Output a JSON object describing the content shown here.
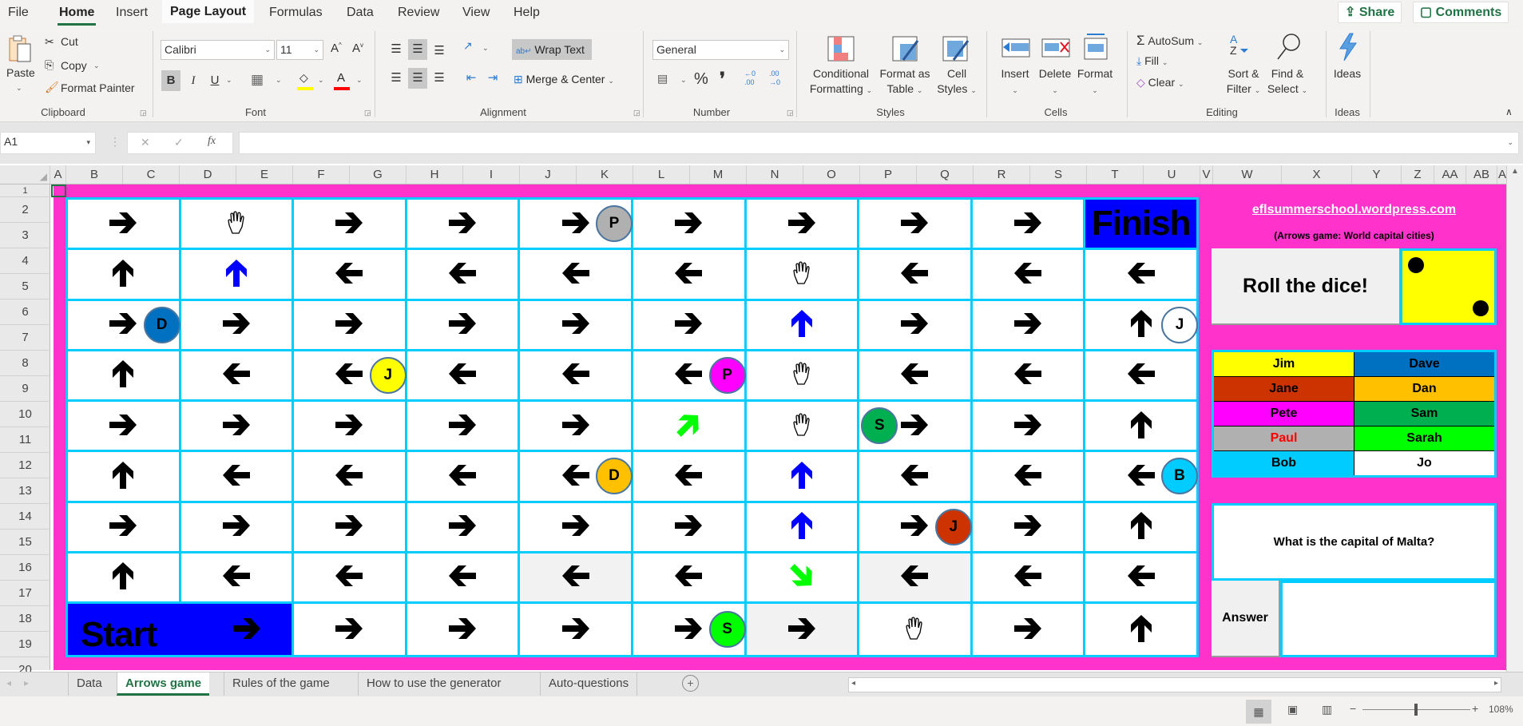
{
  "menu": {
    "tabs": [
      "File",
      "Home",
      "Insert",
      "Page Layout",
      "Formulas",
      "Data",
      "Review",
      "View",
      "Help"
    ],
    "active": "Home",
    "share": "Share",
    "comments": "Comments"
  },
  "ribbon": {
    "clipboard": {
      "label": "Clipboard",
      "paste": "Paste",
      "cut": "Cut",
      "copy": "Copy",
      "format_painter": "Format Painter"
    },
    "font": {
      "label": "Font",
      "name": "Calibri",
      "size": "11",
      "bold": "B",
      "italic": "I",
      "underline": "U",
      "fill_color": "#ffff00",
      "font_color": "#ff0000"
    },
    "alignment": {
      "label": "Alignment",
      "wrap_text": "Wrap Text",
      "merge_center": "Merge & Center"
    },
    "number": {
      "label": "Number",
      "format": "General",
      "percent": "%",
      "comma": "❜"
    },
    "styles": {
      "label": "Styles",
      "conditional": [
        "Conditional",
        "Formatting"
      ],
      "format_table": [
        "Format as",
        "Table"
      ],
      "cell_styles": [
        "Cell",
        "Styles"
      ]
    },
    "cells": {
      "label": "Cells",
      "insert": "Insert",
      "delete": "Delete",
      "format": "Format"
    },
    "editing": {
      "label": "Editing",
      "autosum": "AutoSum",
      "fill": "Fill",
      "clear": "Clear",
      "sort_filter": [
        "Sort &",
        "Filter"
      ],
      "find_select": [
        "Find &",
        "Select"
      ]
    },
    "ideas": {
      "label": "Ideas",
      "button": "Ideas"
    }
  },
  "formula_bar": {
    "name_box": "A1",
    "fx": "fx",
    "cancel": "✕",
    "enter": "✓",
    "value": ""
  },
  "columns": [
    "A",
    "B",
    "C",
    "D",
    "E",
    "F",
    "G",
    "H",
    "I",
    "J",
    "K",
    "L",
    "M",
    "N",
    "O",
    "P",
    "Q",
    "R",
    "S",
    "T",
    "U",
    "V",
    "W",
    "X",
    "Y",
    "Z",
    "AA",
    "AB",
    "A"
  ],
  "rows": [
    "1",
    "2",
    "3",
    "4",
    "5",
    "6",
    "7",
    "8",
    "9",
    "10",
    "11",
    "12",
    "13",
    "14",
    "15",
    "16",
    "17",
    "18",
    "19",
    "20"
  ],
  "colors": {
    "background": "#ff33cc",
    "grid": "#00ccff",
    "start_finish": "#0000ff"
  },
  "board": {
    "start_label": "Start",
    "finish_label": "Finish",
    "rows": [
      [
        {
          "icon": "right"
        },
        {
          "icon": "hand"
        },
        {
          "icon": "right"
        },
        {
          "icon": "right"
        },
        {
          "icon": "right",
          "token": {
            "letter": "P",
            "color": "#b0b0b0",
            "side": "right"
          }
        },
        {
          "icon": "right"
        },
        {
          "icon": "right"
        },
        {
          "icon": "right"
        },
        {
          "icon": "right"
        },
        {
          "type": "finish"
        }
      ],
      [
        {
          "icon": "up"
        },
        {
          "icon": "up",
          "color": "#0000ff"
        },
        {
          "icon": "left"
        },
        {
          "icon": "left"
        },
        {
          "icon": "left"
        },
        {
          "icon": "left"
        },
        {
          "icon": "hand"
        },
        {
          "icon": "left"
        },
        {
          "icon": "left"
        },
        {
          "icon": "left"
        }
      ],
      [
        {
          "icon": "right",
          "token": {
            "letter": "D",
            "color": "#0070c0",
            "side": "right"
          }
        },
        {
          "icon": "right"
        },
        {
          "icon": "right"
        },
        {
          "icon": "right"
        },
        {
          "icon": "right"
        },
        {
          "icon": "right"
        },
        {
          "icon": "up",
          "color": "#0000ff"
        },
        {
          "icon": "right"
        },
        {
          "icon": "right"
        },
        {
          "icon": "up",
          "token": {
            "letter": "J",
            "color": "#ffffff",
            "side": "right"
          }
        }
      ],
      [
        {
          "icon": "up"
        },
        {
          "icon": "left"
        },
        {
          "icon": "left",
          "token": {
            "letter": "J",
            "color": "#ffff00",
            "side": "right"
          }
        },
        {
          "icon": "left"
        },
        {
          "icon": "left"
        },
        {
          "icon": "left",
          "token": {
            "letter": "P",
            "color": "#ff00ff",
            "side": "right"
          }
        },
        {
          "icon": "hand"
        },
        {
          "icon": "left"
        },
        {
          "icon": "left"
        },
        {
          "icon": "left"
        }
      ],
      [
        {
          "icon": "right"
        },
        {
          "icon": "right"
        },
        {
          "icon": "right"
        },
        {
          "icon": "right"
        },
        {
          "icon": "right"
        },
        {
          "icon": "up-right",
          "color": "#00ff00"
        },
        {
          "icon": "hand"
        },
        {
          "icon": "right",
          "token": {
            "letter": "S",
            "color": "#00b050",
            "side": "left"
          }
        },
        {
          "icon": "right"
        },
        {
          "icon": "up"
        }
      ],
      [
        {
          "icon": "up"
        },
        {
          "icon": "left"
        },
        {
          "icon": "left"
        },
        {
          "icon": "left"
        },
        {
          "icon": "left",
          "token": {
            "letter": "D",
            "color": "#ffc000",
            "side": "right"
          }
        },
        {
          "icon": "left"
        },
        {
          "icon": "up",
          "color": "#0000ff"
        },
        {
          "icon": "left"
        },
        {
          "icon": "left"
        },
        {
          "icon": "left",
          "token": {
            "letter": "B",
            "color": "#00ccff",
            "side": "right"
          }
        }
      ],
      [
        {
          "icon": "right"
        },
        {
          "icon": "right"
        },
        {
          "icon": "right"
        },
        {
          "icon": "right"
        },
        {
          "icon": "right"
        },
        {
          "icon": "right"
        },
        {
          "icon": "up",
          "color": "#0000ff"
        },
        {
          "icon": "right",
          "token": {
            "letter": "J",
            "color": "#cc3300",
            "side": "right"
          }
        },
        {
          "icon": "right"
        },
        {
          "icon": "up"
        }
      ],
      [
        {
          "icon": "up"
        },
        {
          "icon": "left"
        },
        {
          "icon": "left"
        },
        {
          "icon": "left"
        },
        {
          "icon": "left",
          "bg": "#f2f2f2"
        },
        {
          "icon": "left"
        },
        {
          "icon": "down-right",
          "color": "#00ff00"
        },
        {
          "icon": "left",
          "bg": "#f2f2f2"
        },
        {
          "icon": "left"
        },
        {
          "icon": "left"
        }
      ],
      [
        {
          "type": "start",
          "icon": "right"
        },
        {
          "icon": "right"
        },
        {
          "icon": "right"
        },
        {
          "icon": "right"
        },
        {
          "icon": "right",
          "token": {
            "letter": "S",
            "color": "#00ff00",
            "side": "right"
          }
        },
        {
          "icon": "right",
          "bg": "#f2f2f2"
        },
        {
          "icon": "hand"
        },
        {
          "icon": "right"
        },
        {
          "icon": "up"
        }
      ]
    ]
  },
  "side_panel": {
    "website": "eflsummerschool.wordpress.com",
    "subtitle": "(Arrows game: World capital cities)",
    "roll_button": "Roll the dice!",
    "dice_value": 2,
    "players": [
      {
        "name": "Jim",
        "color": "#ffff00",
        "text": "#000000"
      },
      {
        "name": "Dave",
        "color": "#0070c0",
        "text": "#000000"
      },
      {
        "name": "Jane",
        "color": "#cc3300",
        "text": "#000000"
      },
      {
        "name": "Dan",
        "color": "#ffc000",
        "text": "#000000"
      },
      {
        "name": "Pete",
        "color": "#ff00ff",
        "text": "#000000"
      },
      {
        "name": "Sam",
        "color": "#00b050",
        "text": "#000000"
      },
      {
        "name": "Paul",
        "color": "#b0b0b0",
        "text": "#ff0000"
      },
      {
        "name": "Sarah",
        "color": "#00ff00",
        "text": "#000000"
      },
      {
        "name": "Bob",
        "color": "#00ccff",
        "text": "#000000"
      },
      {
        "name": "Jo",
        "color": "#ffffff",
        "text": "#000000"
      }
    ],
    "question": "What is the capital of Malta?",
    "answer_button": "Answer",
    "answer_value": ""
  },
  "sheet_tabs": {
    "tabs": [
      "Data",
      "Arrows game",
      "Rules of the game",
      "How to use the generator",
      "Auto-questions"
    ],
    "active": "Arrows game",
    "add": "+"
  },
  "status_bar": {
    "zoom": "108%",
    "zoom_minus": "−",
    "zoom_plus": "+"
  }
}
